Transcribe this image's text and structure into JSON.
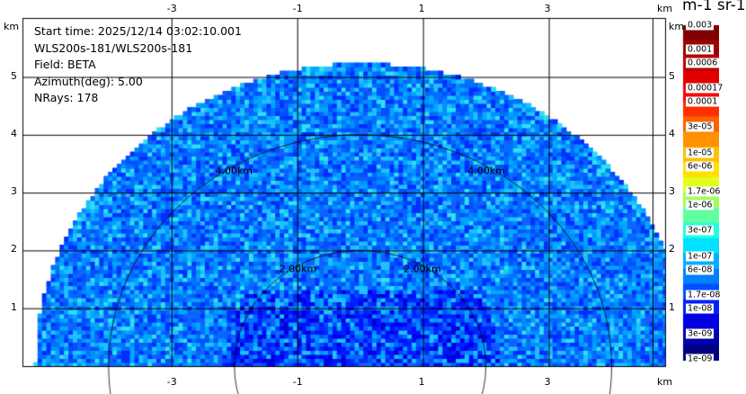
{
  "chart_data": {
    "type": "heatmap",
    "title_lines": [
      "Start time: 2025/12/14 03:02:10.001",
      "WLS200s-181/WLS200s-181",
      "Field: BETA",
      "Azimuth(deg): 5.00",
      "NRays: 178"
    ],
    "xlabel": "km",
    "ylabel": "km",
    "xticks": [
      -3,
      -1,
      1,
      3
    ],
    "yticks": [
      1,
      2,
      3,
      4,
      5
    ],
    "xlim": [
      -5.37,
      4.85
    ],
    "ylim": [
      0,
      6.02
    ],
    "grid": true,
    "range_rings": [
      {
        "radius_km": 2,
        "label": "2.00km"
      },
      {
        "radius_km": 4,
        "label": "4.00km"
      }
    ],
    "max_range_km": 5.2,
    "colorbar": {
      "unit": "m-1 sr-1",
      "labels": [
        "0.003",
        "0.001",
        "0.0006",
        "0.00017",
        "0.0001",
        "3e-05",
        "1e-05",
        "6e-06",
        "1.7e-06",
        "1e-06",
        "3e-07",
        "1e-07",
        "6e-08",
        "1.7e-08",
        "1e-08",
        "3e-09",
        "1e-09"
      ],
      "colors": [
        "#800000",
        "#a00000",
        "#c00000",
        "#e00000",
        "#ff0000",
        "#ff3000",
        "#ff6000",
        "#ff9000",
        "#ffc000",
        "#ffe000",
        "#e0ff20",
        "#a0ff60",
        "#60ffa0",
        "#20ffe0",
        "#00e0ff",
        "#00b0ff",
        "#0080ff",
        "#0050ff",
        "#0020ff",
        "#0000e0",
        "#0000b0",
        "#000080"
      ]
    },
    "dominant_value_range": [
      "1e-08",
      "1e-06"
    ]
  }
}
